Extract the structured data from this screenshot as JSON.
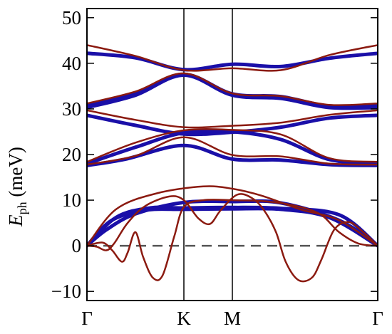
{
  "chart_data": {
    "type": "line",
    "title": "",
    "ylabel": {
      "main": "E",
      "sub": "ph",
      "unit": "(meV)"
    },
    "xlabel": "",
    "ylim": [
      -12,
      52
    ],
    "yticks": [
      -10,
      0,
      10,
      20,
      30,
      40,
      50
    ],
    "x_range": [
      0,
      3
    ],
    "x_points": [
      {
        "label": "Γ",
        "x": 0
      },
      {
        "label": "K",
        "x": 1
      },
      {
        "label": "M",
        "x": 1.5
      },
      {
        "label": "Γ",
        "x": 3
      }
    ],
    "zero_line": {
      "y": 0,
      "style": "dashed",
      "color": "#555555"
    },
    "colors": {
      "blue": "#1a0fa8",
      "red": "#8b1a10"
    },
    "series": [
      {
        "color": "blue",
        "width": 5,
        "points": [
          [
            0,
            42.2
          ],
          [
            0.5,
            41.2
          ],
          [
            1,
            38.6
          ],
          [
            1.5,
            39.8
          ],
          [
            2.0,
            39.3
          ],
          [
            2.5,
            41.1
          ],
          [
            3,
            42.2
          ]
        ]
      },
      {
        "color": "blue",
        "width": 5,
        "points": [
          [
            0,
            30.8
          ],
          [
            0.5,
            33.5
          ],
          [
            1,
            37.6
          ],
          [
            1.5,
            33.3
          ],
          [
            2.0,
            32.7
          ],
          [
            2.5,
            30.6
          ],
          [
            3,
            30.8
          ]
        ]
      },
      {
        "color": "blue",
        "width": 5,
        "points": [
          [
            0,
            30.3
          ],
          [
            0.5,
            33.0
          ],
          [
            1,
            37.4
          ],
          [
            1.5,
            33.0
          ],
          [
            2.0,
            32.3
          ],
          [
            2.5,
            30.3
          ],
          [
            3,
            30.3
          ]
        ]
      },
      {
        "color": "blue",
        "width": 5,
        "points": [
          [
            0,
            28.6
          ],
          [
            0.5,
            26.4
          ],
          [
            1,
            24.5
          ],
          [
            1.5,
            24.9
          ],
          [
            2.0,
            26.0
          ],
          [
            2.5,
            28.0
          ],
          [
            3,
            28.6
          ]
        ]
      },
      {
        "color": "blue",
        "width": 5,
        "points": [
          [
            0,
            18.0
          ],
          [
            0.5,
            21.6
          ],
          [
            1,
            24.8
          ],
          [
            1.5,
            25.0
          ],
          [
            2.0,
            23.3
          ],
          [
            2.5,
            18.9
          ],
          [
            3,
            18.0
          ]
        ]
      },
      {
        "color": "blue",
        "width": 5,
        "points": [
          [
            0,
            17.6
          ],
          [
            0.4,
            19.0
          ],
          [
            1,
            22.0
          ],
          [
            1.5,
            19.0
          ],
          [
            2.0,
            18.8
          ],
          [
            2.5,
            17.8
          ],
          [
            3,
            17.6
          ]
        ]
      },
      {
        "color": "blue",
        "width": 5,
        "points": [
          [
            0,
            0
          ],
          [
            0.25,
            5.5
          ],
          [
            0.6,
            7.8
          ],
          [
            1,
            8.0
          ],
          [
            1.5,
            8.1
          ],
          [
            2.0,
            8.0
          ],
          [
            2.5,
            6.2
          ],
          [
            3,
            0
          ]
        ]
      },
      {
        "color": "blue",
        "width": 5,
        "points": [
          [
            0,
            0
          ],
          [
            0.3,
            6.2
          ],
          [
            0.65,
            8.3
          ],
          [
            1,
            8.3
          ],
          [
            1.5,
            8.4
          ],
          [
            2.0,
            8.2
          ],
          [
            2.6,
            6.8
          ],
          [
            3,
            0
          ]
        ]
      },
      {
        "color": "blue",
        "width": 5,
        "points": [
          [
            0,
            0
          ],
          [
            0.2,
            3.5
          ],
          [
            0.5,
            7.0
          ],
          [
            1,
            9.5
          ],
          [
            1.5,
            9.7
          ],
          [
            2.0,
            9.4
          ],
          [
            2.6,
            5.6
          ],
          [
            3,
            0
          ]
        ]
      },
      {
        "color": "red",
        "width": 2.5,
        "points": [
          [
            0,
            44.0
          ],
          [
            0.5,
            41.6
          ],
          [
            1,
            38.5
          ],
          [
            1.5,
            38.9
          ],
          [
            2.0,
            38.5
          ],
          [
            2.5,
            41.8
          ],
          [
            3,
            44.0
          ]
        ]
      },
      {
        "color": "red",
        "width": 2.5,
        "points": [
          [
            0,
            31.2
          ],
          [
            0.5,
            33.8
          ],
          [
            1,
            37.8
          ],
          [
            1.5,
            33.4
          ],
          [
            2.0,
            32.8
          ],
          [
            2.5,
            30.9
          ],
          [
            3,
            31.2
          ]
        ]
      },
      {
        "color": "red",
        "width": 2.5,
        "points": [
          [
            0,
            29.7
          ],
          [
            0.5,
            27.6
          ],
          [
            1,
            26.0
          ],
          [
            1.5,
            26.3
          ],
          [
            2.0,
            27.0
          ],
          [
            2.5,
            28.7
          ],
          [
            3,
            29.7
          ]
        ]
      },
      {
        "color": "red",
        "width": 2.5,
        "points": [
          [
            0,
            18.4
          ],
          [
            0.5,
            22.6
          ],
          [
            1,
            25.3
          ],
          [
            1.5,
            25.4
          ],
          [
            2.0,
            24.4
          ],
          [
            2.5,
            19.2
          ],
          [
            3,
            18.4
          ]
        ]
      },
      {
        "color": "red",
        "width": 2.5,
        "points": [
          [
            0,
            17.8
          ],
          [
            0.5,
            19.7
          ],
          [
            1,
            23.8
          ],
          [
            1.5,
            19.9
          ],
          [
            2.0,
            19.6
          ],
          [
            2.5,
            18.0
          ],
          [
            3,
            17.8
          ]
        ]
      },
      {
        "color": "red",
        "width": 2.5,
        "points": [
          [
            0,
            0
          ],
          [
            0.3,
            8.0
          ],
          [
            0.72,
            11.5
          ],
          [
            1.2,
            13.0
          ],
          [
            1.5,
            12.5
          ],
          [
            1.8,
            11.0
          ],
          [
            2.2,
            8.0
          ],
          [
            2.6,
            5.6
          ],
          [
            3,
            0
          ]
        ]
      },
      {
        "color": "red",
        "width": 2.5,
        "points": [
          [
            0,
            0
          ],
          [
            0.1,
            -0.2
          ],
          [
            0.2,
            -1.0
          ],
          [
            0.28,
            0.5
          ],
          [
            0.42,
            5.0
          ],
          [
            0.6,
            8.7
          ],
          [
            0.85,
            10.8
          ],
          [
            1,
            10.0
          ],
          [
            1.15,
            6.0
          ],
          [
            1.27,
            4.8
          ],
          [
            1.38,
            7.8
          ],
          [
            1.55,
            11.2
          ],
          [
            1.7,
            10.5
          ],
          [
            1.82,
            8.0
          ],
          [
            1.95,
            3.0
          ],
          [
            2.05,
            -3.5
          ],
          [
            2.18,
            -7.5
          ],
          [
            2.32,
            -7.0
          ],
          [
            2.42,
            -3.0
          ],
          [
            2.55,
            3.5
          ],
          [
            2.7,
            5.2
          ],
          [
            2.85,
            3.0
          ],
          [
            3,
            0
          ]
        ]
      },
      {
        "color": "red",
        "width": 2.5,
        "points": [
          [
            0,
            0
          ],
          [
            0.16,
            0.7
          ],
          [
            0.26,
            -1.0
          ],
          [
            0.36,
            -3.5
          ],
          [
            0.42,
            -1.5
          ],
          [
            0.5,
            3.0
          ],
          [
            0.58,
            -2.5
          ],
          [
            0.68,
            -7.0
          ],
          [
            0.78,
            -6.5
          ],
          [
            0.9,
            2.0
          ],
          [
            1,
            8.5
          ],
          [
            1.2,
            10.0
          ],
          [
            1.5,
            10.0
          ],
          [
            1.8,
            9.8
          ],
          [
            2.1,
            9.0
          ],
          [
            2.4,
            7.0
          ],
          [
            2.6,
            3.0
          ],
          [
            2.8,
            0.5
          ],
          [
            3,
            0
          ]
        ]
      }
    ]
  }
}
